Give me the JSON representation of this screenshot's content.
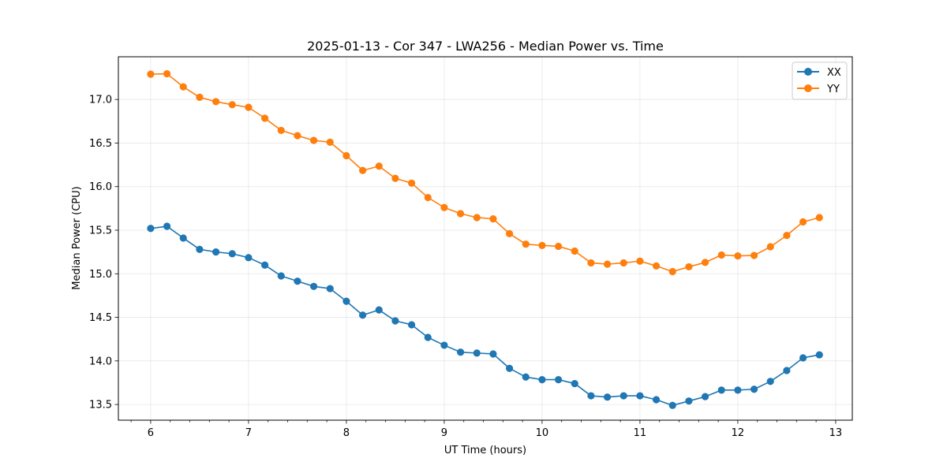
{
  "chart_data": {
    "type": "line",
    "title": "2025-01-13 - Cor 347 - LWA256 - Median Power vs. Time",
    "xlabel": "UT Time (hours)",
    "ylabel": "Median Power (CPU)",
    "xlim": [
      5.67,
      13.17
    ],
    "ylim": [
      13.32,
      17.49
    ],
    "xticks": [
      6,
      7,
      8,
      9,
      10,
      11,
      12,
      13
    ],
    "yticks": [
      13.5,
      14.0,
      14.5,
      15.0,
      15.5,
      16.0,
      16.5,
      17.0
    ],
    "grid": true,
    "legend_position": "top-right",
    "x": [
      6.0,
      6.1667,
      6.3333,
      6.5,
      6.6667,
      6.8333,
      7.0,
      7.1667,
      7.3333,
      7.5,
      7.6667,
      7.8333,
      8.0,
      8.1667,
      8.3333,
      8.5,
      8.6667,
      8.8333,
      9.0,
      9.1667,
      9.3333,
      9.5,
      9.6667,
      9.8333,
      10.0,
      10.1667,
      10.3333,
      10.5,
      10.6667,
      10.8333,
      11.0,
      11.1667,
      11.3333,
      11.5,
      11.6667,
      11.8333,
      12.0,
      12.1667,
      12.3333,
      12.5,
      12.6667,
      12.8333
    ],
    "series": [
      {
        "name": "XX",
        "color": "#1f77b4",
        "values": [
          15.52,
          15.545,
          15.41,
          15.28,
          15.25,
          15.23,
          15.185,
          15.1,
          14.975,
          14.915,
          14.855,
          14.83,
          14.685,
          14.525,
          14.585,
          14.46,
          14.415,
          14.27,
          14.18,
          14.1,
          14.09,
          14.08,
          13.915,
          13.815,
          13.785,
          13.785,
          13.74,
          13.6,
          13.585,
          13.6,
          13.6,
          13.555,
          13.49,
          13.54,
          13.59,
          13.665,
          13.665,
          13.675,
          13.765,
          13.89,
          14.035,
          14.07
        ]
      },
      {
        "name": "YY",
        "color": "#ff7f0e",
        "values": [
          17.29,
          17.295,
          17.145,
          17.025,
          16.975,
          16.94,
          16.91,
          16.785,
          16.645,
          16.585,
          16.53,
          16.51,
          16.355,
          16.185,
          16.235,
          16.095,
          16.04,
          15.875,
          15.76,
          15.69,
          15.645,
          15.63,
          15.46,
          15.34,
          15.325,
          15.315,
          15.26,
          15.125,
          15.11,
          15.125,
          15.145,
          15.09,
          15.025,
          15.08,
          15.13,
          15.215,
          15.205,
          15.21,
          15.31,
          15.44,
          15.595,
          15.645
        ]
      }
    ]
  }
}
